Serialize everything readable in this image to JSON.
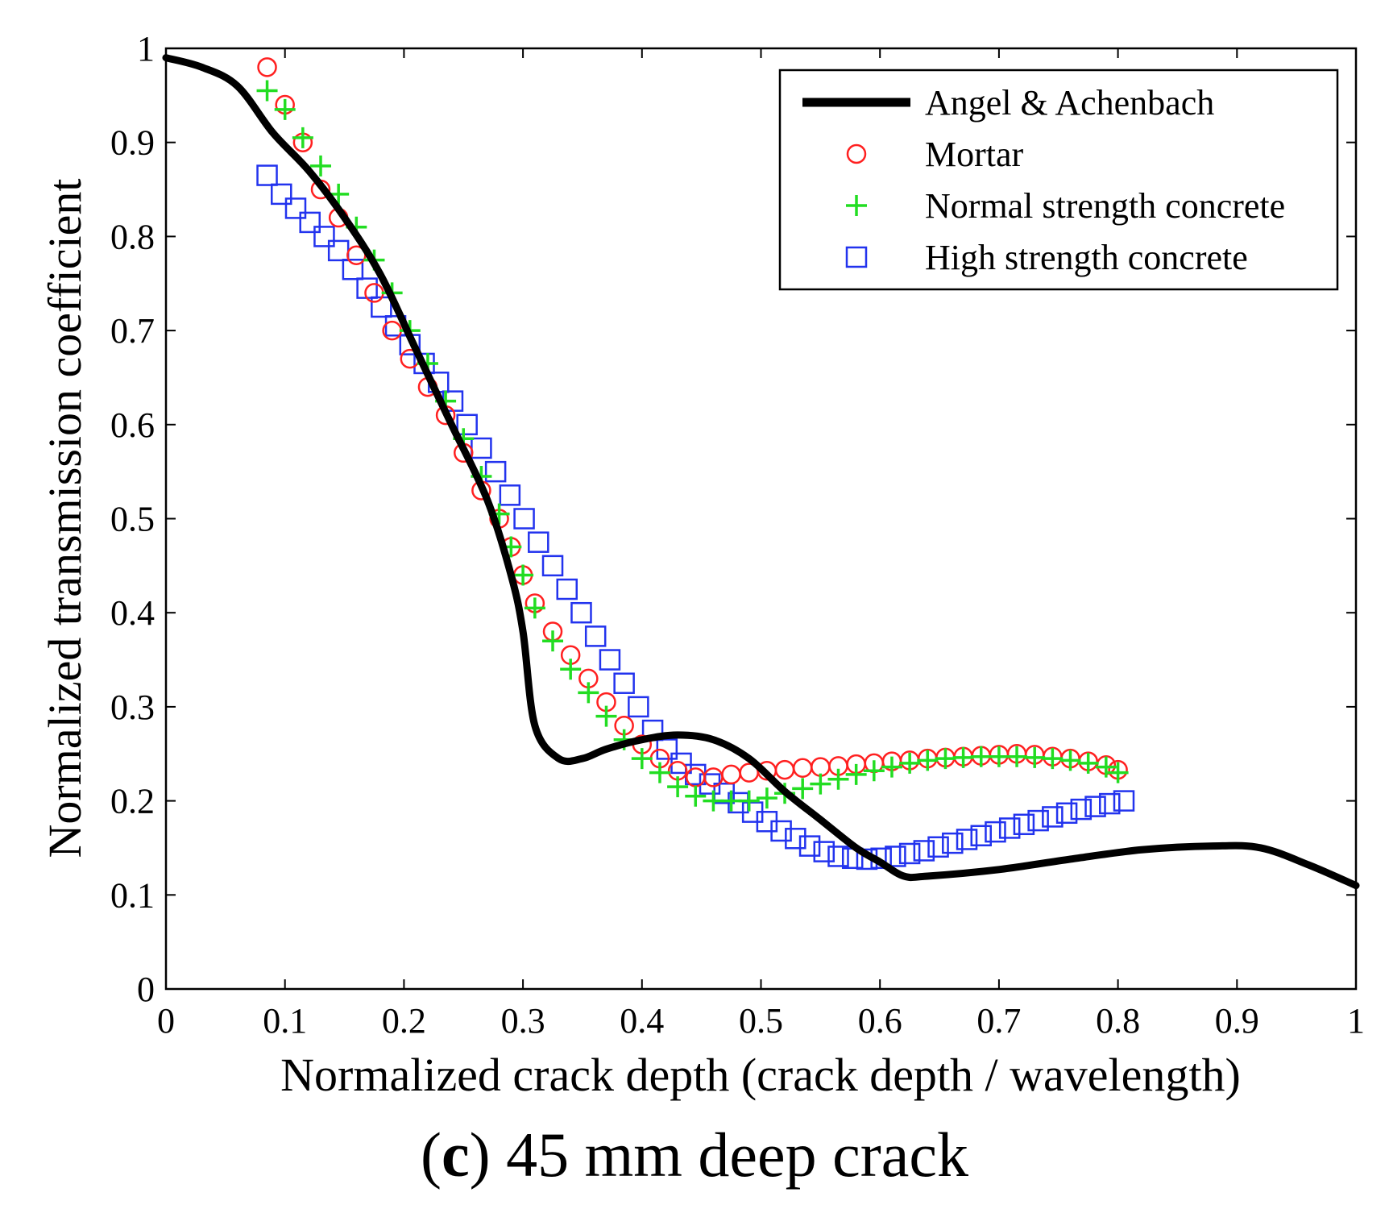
{
  "chart_data": {
    "type": "line",
    "xlabel": "Normalized crack depth (crack depth / wavelength)",
    "ylabel": "Normalized transmission coefficient",
    "xlim": [
      0,
      1
    ],
    "ylim": [
      0,
      1
    ],
    "xticks": [
      0,
      0.1,
      0.2,
      0.3,
      0.4,
      0.5,
      0.6,
      0.7,
      0.8,
      0.9,
      1
    ],
    "xtick_labels": [
      "0",
      "0.1",
      "0.2",
      "0.3",
      "0.4",
      "0.5",
      "0.6",
      "0.7",
      "0.8",
      "0.9",
      "1"
    ],
    "yticks": [
      0,
      0.1,
      0.2,
      0.3,
      0.4,
      0.5,
      0.6,
      0.7,
      0.8,
      0.9,
      1
    ],
    "ytick_labels": [
      "0",
      "0.1",
      "0.2",
      "0.3",
      "0.4",
      "0.5",
      "0.6",
      "0.7",
      "0.8",
      "0.9",
      "1"
    ],
    "grid": false,
    "legend_position": "top-right",
    "series": [
      {
        "name": "Angel & Achenbach",
        "style": "line",
        "color": "#000000",
        "x": [
          0,
          0.03,
          0.06,
          0.09,
          0.12,
          0.15,
          0.18,
          0.21,
          0.24,
          0.27,
          0.29,
          0.3,
          0.31,
          0.33,
          0.35,
          0.37,
          0.4,
          0.43,
          0.46,
          0.49,
          0.52,
          0.55,
          0.58,
          0.6,
          0.62,
          0.64,
          0.7,
          0.76,
          0.82,
          0.88,
          0.92,
          0.96,
          1.0
        ],
        "y": [
          0.99,
          0.98,
          0.96,
          0.91,
          0.87,
          0.82,
          0.76,
          0.68,
          0.6,
          0.52,
          0.44,
          0.38,
          0.28,
          0.245,
          0.245,
          0.255,
          0.265,
          0.27,
          0.265,
          0.245,
          0.21,
          0.18,
          0.15,
          0.135,
          0.12,
          0.12,
          0.127,
          0.138,
          0.148,
          0.152,
          0.15,
          0.132,
          0.11
        ]
      },
      {
        "name": "Mortar",
        "style": "marker",
        "marker": "circle",
        "color": "#ff2020",
        "x": [
          0.085,
          0.1,
          0.115,
          0.13,
          0.145,
          0.16,
          0.175,
          0.19,
          0.205,
          0.22,
          0.235,
          0.25,
          0.265,
          0.28,
          0.29,
          0.3,
          0.31,
          0.325,
          0.34,
          0.355,
          0.37,
          0.385,
          0.4,
          0.415,
          0.43,
          0.445,
          0.46,
          0.475,
          0.49,
          0.505,
          0.52,
          0.535,
          0.55,
          0.565,
          0.58,
          0.595,
          0.61,
          0.625,
          0.64,
          0.655,
          0.67,
          0.685,
          0.7,
          0.715,
          0.73,
          0.745,
          0.76,
          0.775,
          0.79,
          0.8
        ],
        "y": [
          0.98,
          0.94,
          0.9,
          0.85,
          0.82,
          0.78,
          0.74,
          0.7,
          0.67,
          0.64,
          0.61,
          0.57,
          0.53,
          0.5,
          0.47,
          0.44,
          0.41,
          0.38,
          0.355,
          0.33,
          0.305,
          0.28,
          0.26,
          0.245,
          0.232,
          0.225,
          0.225,
          0.228,
          0.23,
          0.232,
          0.233,
          0.235,
          0.236,
          0.237,
          0.239,
          0.24,
          0.242,
          0.243,
          0.245,
          0.246,
          0.247,
          0.248,
          0.249,
          0.25,
          0.249,
          0.247,
          0.245,
          0.242,
          0.238,
          0.233
        ]
      },
      {
        "name": "Normal strength concrete",
        "style": "marker",
        "marker": "plus",
        "color": "#22dd22",
        "x": [
          0.085,
          0.1,
          0.115,
          0.13,
          0.145,
          0.16,
          0.175,
          0.19,
          0.205,
          0.22,
          0.235,
          0.25,
          0.265,
          0.28,
          0.29,
          0.3,
          0.31,
          0.325,
          0.34,
          0.355,
          0.37,
          0.385,
          0.4,
          0.415,
          0.43,
          0.445,
          0.46,
          0.475,
          0.49,
          0.505,
          0.52,
          0.535,
          0.55,
          0.565,
          0.58,
          0.595,
          0.61,
          0.625,
          0.64,
          0.655,
          0.67,
          0.685,
          0.7,
          0.715,
          0.73,
          0.745,
          0.76,
          0.775,
          0.79,
          0.8
        ],
        "y": [
          0.955,
          0.935,
          0.905,
          0.875,
          0.845,
          0.81,
          0.775,
          0.74,
          0.7,
          0.665,
          0.625,
          0.585,
          0.545,
          0.505,
          0.47,
          0.44,
          0.405,
          0.37,
          0.34,
          0.315,
          0.29,
          0.265,
          0.245,
          0.23,
          0.215,
          0.205,
          0.2,
          0.2,
          0.2,
          0.203,
          0.208,
          0.213,
          0.218,
          0.223,
          0.228,
          0.232,
          0.236,
          0.24,
          0.243,
          0.245,
          0.246,
          0.247,
          0.247,
          0.247,
          0.246,
          0.245,
          0.243,
          0.24,
          0.236,
          0.23
        ]
      },
      {
        "name": "High strength concrete",
        "style": "marker",
        "marker": "square",
        "color": "#2233ee",
        "x": [
          0.085,
          0.097,
          0.109,
          0.121,
          0.133,
          0.145,
          0.157,
          0.169,
          0.181,
          0.193,
          0.205,
          0.217,
          0.229,
          0.241,
          0.253,
          0.265,
          0.277,
          0.289,
          0.301,
          0.313,
          0.325,
          0.337,
          0.349,
          0.361,
          0.373,
          0.385,
          0.397,
          0.409,
          0.421,
          0.433,
          0.445,
          0.457,
          0.469,
          0.481,
          0.493,
          0.505,
          0.517,
          0.529,
          0.541,
          0.553,
          0.565,
          0.577,
          0.589,
          0.601,
          0.613,
          0.625,
          0.637,
          0.649,
          0.661,
          0.673,
          0.685,
          0.697,
          0.709,
          0.721,
          0.733,
          0.745,
          0.757,
          0.769,
          0.781,
          0.793,
          0.805
        ],
        "y": [
          0.865,
          0.845,
          0.83,
          0.815,
          0.8,
          0.785,
          0.765,
          0.745,
          0.725,
          0.705,
          0.685,
          0.665,
          0.645,
          0.625,
          0.6,
          0.575,
          0.55,
          0.525,
          0.5,
          0.475,
          0.45,
          0.425,
          0.4,
          0.375,
          0.35,
          0.325,
          0.3,
          0.275,
          0.255,
          0.24,
          0.228,
          0.218,
          0.208,
          0.198,
          0.188,
          0.178,
          0.168,
          0.16,
          0.152,
          0.146,
          0.141,
          0.139,
          0.138,
          0.139,
          0.141,
          0.144,
          0.147,
          0.151,
          0.155,
          0.159,
          0.163,
          0.167,
          0.171,
          0.175,
          0.179,
          0.183,
          0.187,
          0.191,
          0.194,
          0.197,
          0.2
        ]
      }
    ]
  },
  "caption": {
    "prefix": "(",
    "letter": "c",
    "rest": ") 45 mm deep crack"
  }
}
